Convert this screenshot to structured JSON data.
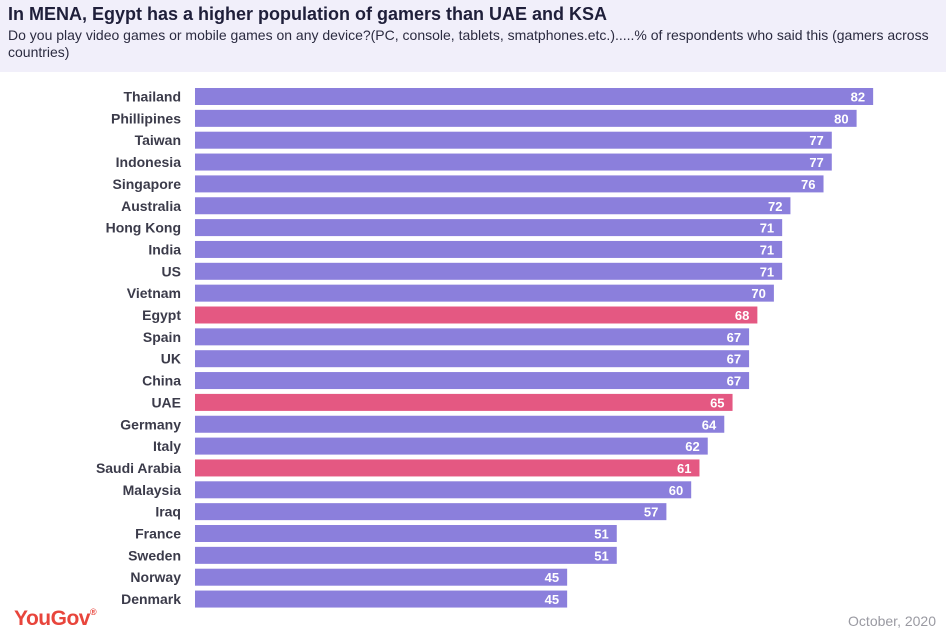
{
  "title": "In MENA, Egypt has a higher population of gamers than UAE and KSA",
  "subtitle": "Do you play video games or mobile games on any device?(PC, console, tablets, smatphones.etc.).....% of respondents who said this (gamers across countries)",
  "brand": {
    "name": "YouGov",
    "mark": "®"
  },
  "date": "October, 2020",
  "colors": {
    "default": "#8b7fdc",
    "highlight": "#e45882"
  },
  "chart_data": {
    "type": "bar",
    "orientation": "horizontal",
    "categories": [
      "Thailand",
      "Phillipines",
      "Taiwan",
      "Indonesia",
      "Singapore",
      "Australia",
      "Hong Kong",
      "India",
      "US",
      "Vietnam",
      "Egypt",
      "Spain",
      "UK",
      "China",
      "UAE",
      "Germany",
      "Italy",
      "Saudi Arabia",
      "Malaysia",
      "Iraq",
      "France",
      "Sweden",
      "Norway",
      "Denmark"
    ],
    "values": [
      82,
      80,
      77,
      77,
      76,
      72,
      71,
      71,
      71,
      70,
      68,
      67,
      67,
      67,
      65,
      64,
      62,
      61,
      60,
      57,
      51,
      51,
      45,
      45
    ],
    "highlighted": [
      "Egypt",
      "UAE",
      "Saudi Arabia"
    ],
    "xlim": [
      0,
      100
    ],
    "unit": "%",
    "grid": false,
    "legend": "none"
  }
}
